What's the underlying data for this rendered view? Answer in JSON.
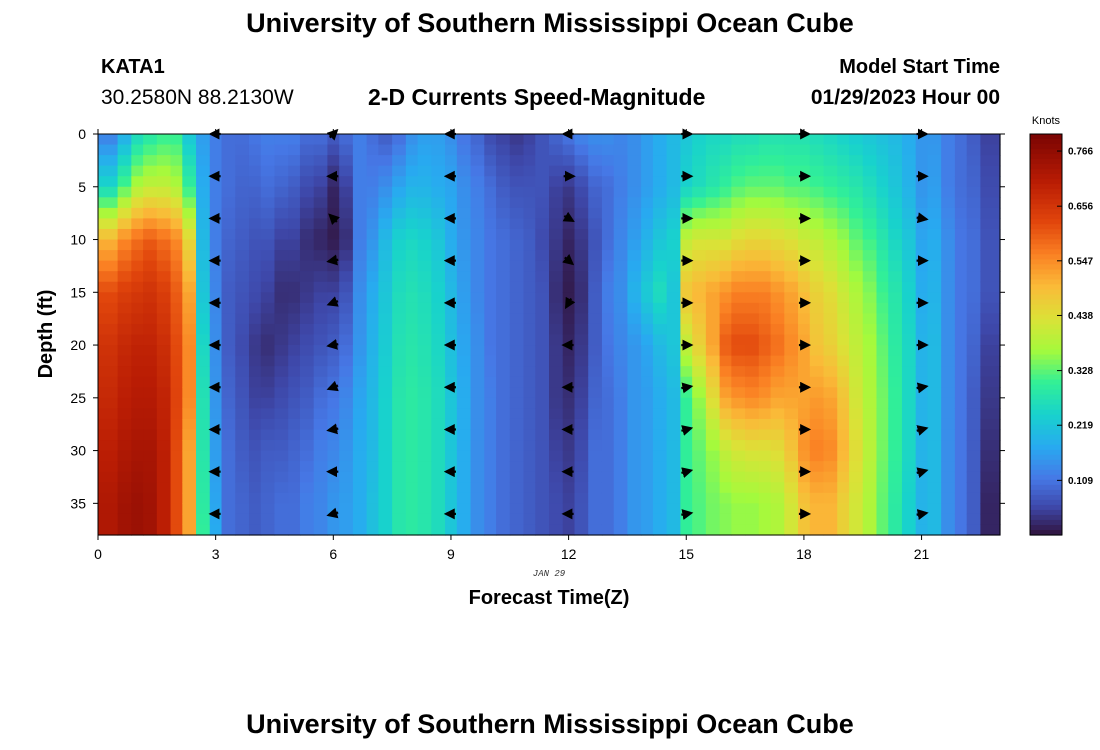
{
  "page": {
    "title": "University of Southern Mississippi Ocean Cube",
    "station": "KATA1",
    "coordinates": "30.2580N  88.2130W",
    "subtitle": "2-D Currents Speed-Magnitude",
    "model_start_label": "Model Start Time",
    "model_start_value": "01/29/2023 Hour 00",
    "footer_title": "University of Southern Mississippi Ocean Cube"
  },
  "chart_data": {
    "type": "heatmap",
    "title": "2-D Currents Speed-Magnitude",
    "xlabel": "Forecast Time(Z)",
    "ylabel": "Depth (ft)",
    "x_date_label": "JAN 29",
    "xlim": [
      0,
      23
    ],
    "ylim": [
      0,
      38
    ],
    "y_inverted": true,
    "x_ticks": [
      0,
      3,
      6,
      9,
      12,
      15,
      18,
      21
    ],
    "y_ticks": [
      0,
      5,
      10,
      15,
      20,
      25,
      30,
      35
    ],
    "colorbar": {
      "title": "Knots",
      "min": 0.0,
      "max": 0.8,
      "tick_values": [
        0.766,
        0.656,
        0.547,
        0.438,
        0.328,
        0.219,
        0.109
      ],
      "tick_labels": [
        "0.766",
        "0.656",
        "0.547",
        "0.438",
        "0.328",
        "0.219",
        "0.109"
      ]
    },
    "time_columns": [
      0.3,
      0.7,
      1.0,
      1.3,
      1.7,
      2.0,
      2.3,
      2.7,
      3.0,
      3.3,
      3.7,
      4.0,
      4.3,
      4.7,
      5.0,
      5.3,
      5.7,
      6.0,
      6.3,
      6.7,
      7.0,
      7.3,
      7.7,
      8.0,
      8.3,
      8.7,
      9.0,
      9.3,
      9.7,
      10.0,
      10.3,
      10.7,
      11.0,
      11.3,
      11.7,
      12.0,
      12.3,
      12.7,
      13.0,
      13.3,
      13.7,
      14.0,
      14.3,
      14.7,
      15.0,
      15.3,
      15.7,
      16.0,
      16.3,
      16.7,
      17.0,
      17.3,
      17.7,
      18.0,
      18.3,
      18.7,
      19.0,
      19.3,
      19.7,
      20.0,
      20.3,
      20.7,
      21.0,
      21.3,
      21.7,
      22.0,
      22.3,
      22.7
    ],
    "depth_anchors": [
      0,
      5,
      10,
      15,
      20,
      25,
      30,
      35,
      38
    ],
    "speed_knots_by_time": [
      [
        0.12,
        0.25,
        0.5,
        0.62,
        0.66,
        0.68,
        0.7,
        0.72,
        0.72
      ],
      [
        0.18,
        0.32,
        0.55,
        0.64,
        0.68,
        0.7,
        0.72,
        0.74,
        0.74
      ],
      [
        0.25,
        0.38,
        0.58,
        0.65,
        0.69,
        0.71,
        0.73,
        0.75,
        0.75
      ],
      [
        0.28,
        0.4,
        0.6,
        0.66,
        0.69,
        0.71,
        0.73,
        0.74,
        0.74
      ],
      [
        0.3,
        0.4,
        0.58,
        0.64,
        0.67,
        0.69,
        0.7,
        0.7,
        0.7
      ],
      [
        0.3,
        0.38,
        0.55,
        0.6,
        0.62,
        0.63,
        0.62,
        0.62,
        0.62
      ],
      [
        0.22,
        0.3,
        0.45,
        0.52,
        0.55,
        0.55,
        0.52,
        0.52,
        0.52
      ],
      [
        0.16,
        0.18,
        0.2,
        0.22,
        0.25,
        0.27,
        0.28,
        0.29,
        0.3
      ],
      [
        0.12,
        0.12,
        0.12,
        0.13,
        0.14,
        0.15,
        0.16,
        0.17,
        0.18
      ],
      [
        0.1,
        0.1,
        0.09,
        0.08,
        0.08,
        0.09,
        0.1,
        0.1,
        0.1
      ],
      [
        0.1,
        0.09,
        0.08,
        0.07,
        0.06,
        0.07,
        0.08,
        0.09,
        0.09
      ],
      [
        0.11,
        0.09,
        0.07,
        0.06,
        0.04,
        0.05,
        0.07,
        0.08,
        0.08
      ],
      [
        0.12,
        0.1,
        0.07,
        0.05,
        0.03,
        0.05,
        0.08,
        0.09,
        0.09
      ],
      [
        0.12,
        0.09,
        0.05,
        0.03,
        0.04,
        0.06,
        0.08,
        0.1,
        0.1
      ],
      [
        0.12,
        0.08,
        0.05,
        0.03,
        0.05,
        0.07,
        0.09,
        0.1,
        0.1
      ],
      [
        0.1,
        0.06,
        0.03,
        0.04,
        0.06,
        0.08,
        0.1,
        0.12,
        0.12
      ],
      [
        0.1,
        0.05,
        0.02,
        0.05,
        0.07,
        0.1,
        0.12,
        0.13,
        0.13
      ],
      [
        0.08,
        0.02,
        0.01,
        0.05,
        0.08,
        0.11,
        0.13,
        0.15,
        0.15
      ],
      [
        0.1,
        0.05,
        0.03,
        0.07,
        0.1,
        0.13,
        0.15,
        0.16,
        0.16
      ],
      [
        0.12,
        0.12,
        0.12,
        0.14,
        0.15,
        0.17,
        0.18,
        0.18,
        0.18
      ],
      [
        0.1,
        0.12,
        0.15,
        0.18,
        0.19,
        0.2,
        0.2,
        0.21,
        0.21
      ],
      [
        0.08,
        0.14,
        0.2,
        0.22,
        0.23,
        0.24,
        0.24,
        0.24,
        0.24
      ],
      [
        0.1,
        0.17,
        0.24,
        0.26,
        0.27,
        0.28,
        0.28,
        0.28,
        0.28
      ],
      [
        0.14,
        0.19,
        0.25,
        0.27,
        0.28,
        0.29,
        0.29,
        0.29,
        0.29
      ],
      [
        0.16,
        0.19,
        0.24,
        0.26,
        0.27,
        0.28,
        0.28,
        0.28,
        0.28
      ],
      [
        0.16,
        0.18,
        0.22,
        0.24,
        0.25,
        0.26,
        0.26,
        0.26,
        0.26
      ],
      [
        0.14,
        0.17,
        0.18,
        0.2,
        0.21,
        0.22,
        0.22,
        0.22,
        0.22
      ],
      [
        0.11,
        0.14,
        0.15,
        0.16,
        0.17,
        0.18,
        0.18,
        0.18,
        0.18
      ],
      [
        0.09,
        0.12,
        0.13,
        0.13,
        0.14,
        0.14,
        0.14,
        0.14,
        0.14
      ],
      [
        0.06,
        0.1,
        0.11,
        0.11,
        0.11,
        0.12,
        0.12,
        0.12,
        0.12
      ],
      [
        0.05,
        0.08,
        0.1,
        0.1,
        0.1,
        0.1,
        0.1,
        0.1,
        0.1
      ],
      [
        0.04,
        0.07,
        0.09,
        0.09,
        0.09,
        0.09,
        0.09,
        0.09,
        0.09
      ],
      [
        0.05,
        0.07,
        0.08,
        0.08,
        0.08,
        0.08,
        0.08,
        0.08,
        0.08
      ],
      [
        0.07,
        0.07,
        0.06,
        0.07,
        0.07,
        0.07,
        0.07,
        0.07,
        0.07
      ],
      [
        0.09,
        0.05,
        0.04,
        0.03,
        0.04,
        0.04,
        0.05,
        0.06,
        0.06
      ],
      [
        0.11,
        0.04,
        0.02,
        0.01,
        0.02,
        0.03,
        0.04,
        0.05,
        0.05
      ],
      [
        0.13,
        0.06,
        0.04,
        0.03,
        0.04,
        0.05,
        0.06,
        0.07,
        0.07
      ],
      [
        0.14,
        0.09,
        0.07,
        0.08,
        0.08,
        0.09,
        0.1,
        0.1,
        0.1
      ],
      [
        0.14,
        0.1,
        0.1,
        0.12,
        0.11,
        0.1,
        0.1,
        0.1,
        0.1
      ],
      [
        0.13,
        0.12,
        0.13,
        0.14,
        0.13,
        0.12,
        0.12,
        0.12,
        0.12
      ],
      [
        0.14,
        0.14,
        0.16,
        0.19,
        0.15,
        0.15,
        0.15,
        0.15,
        0.15
      ],
      [
        0.16,
        0.16,
        0.19,
        0.23,
        0.17,
        0.16,
        0.16,
        0.16,
        0.16
      ],
      [
        0.18,
        0.18,
        0.22,
        0.26,
        0.2,
        0.18,
        0.18,
        0.18,
        0.18
      ],
      [
        0.2,
        0.2,
        0.24,
        0.22,
        0.22,
        0.2,
        0.2,
        0.2,
        0.2
      ],
      [
        0.22,
        0.24,
        0.4,
        0.48,
        0.4,
        0.3,
        0.3,
        0.3,
        0.3
      ],
      [
        0.24,
        0.26,
        0.42,
        0.5,
        0.46,
        0.36,
        0.33,
        0.32,
        0.32
      ],
      [
        0.25,
        0.28,
        0.42,
        0.52,
        0.52,
        0.44,
        0.36,
        0.34,
        0.34
      ],
      [
        0.25,
        0.3,
        0.42,
        0.54,
        0.6,
        0.52,
        0.4,
        0.35,
        0.35
      ],
      [
        0.26,
        0.32,
        0.44,
        0.56,
        0.62,
        0.54,
        0.42,
        0.36,
        0.36
      ],
      [
        0.26,
        0.33,
        0.45,
        0.56,
        0.62,
        0.55,
        0.43,
        0.36,
        0.36
      ],
      [
        0.27,
        0.33,
        0.45,
        0.56,
        0.6,
        0.54,
        0.43,
        0.37,
        0.37
      ],
      [
        0.27,
        0.33,
        0.44,
        0.54,
        0.58,
        0.52,
        0.44,
        0.38,
        0.38
      ],
      [
        0.27,
        0.32,
        0.43,
        0.52,
        0.55,
        0.52,
        0.48,
        0.42,
        0.42
      ],
      [
        0.27,
        0.32,
        0.41,
        0.49,
        0.52,
        0.52,
        0.54,
        0.48,
        0.48
      ],
      [
        0.26,
        0.31,
        0.4,
        0.46,
        0.48,
        0.53,
        0.56,
        0.5,
        0.5
      ],
      [
        0.25,
        0.3,
        0.38,
        0.44,
        0.46,
        0.52,
        0.55,
        0.5,
        0.5
      ],
      [
        0.24,
        0.29,
        0.36,
        0.41,
        0.43,
        0.48,
        0.5,
        0.46,
        0.46
      ],
      [
        0.23,
        0.28,
        0.33,
        0.38,
        0.4,
        0.42,
        0.44,
        0.42,
        0.42
      ],
      [
        0.22,
        0.26,
        0.31,
        0.35,
        0.37,
        0.38,
        0.39,
        0.38,
        0.38
      ],
      [
        0.21,
        0.24,
        0.28,
        0.31,
        0.33,
        0.34,
        0.34,
        0.33,
        0.33
      ],
      [
        0.2,
        0.22,
        0.25,
        0.28,
        0.29,
        0.3,
        0.3,
        0.29,
        0.29
      ],
      [
        0.18,
        0.19,
        0.22,
        0.24,
        0.25,
        0.25,
        0.25,
        0.24,
        0.24
      ],
      [
        0.15,
        0.15,
        0.17,
        0.18,
        0.19,
        0.19,
        0.19,
        0.19,
        0.19
      ],
      [
        0.15,
        0.16,
        0.18,
        0.19,
        0.2,
        0.2,
        0.2,
        0.2,
        0.2
      ],
      [
        0.12,
        0.12,
        0.14,
        0.14,
        0.14,
        0.14,
        0.14,
        0.14,
        0.14
      ],
      [
        0.1,
        0.1,
        0.11,
        0.11,
        0.11,
        0.11,
        0.11,
        0.11,
        0.11
      ],
      [
        0.08,
        0.09,
        0.1,
        0.1,
        0.09,
        0.08,
        0.08,
        0.08,
        0.08
      ],
      [
        0.05,
        0.06,
        0.07,
        0.07,
        0.05,
        0.04,
        0.03,
        0.02,
        0.02
      ]
    ],
    "vector_times": [
      3,
      6,
      9,
      12,
      15,
      18,
      21
    ],
    "vector_depths": [
      0,
      4,
      8,
      12,
      16,
      20,
      24,
      28,
      32,
      36
    ],
    "vector_direction_deg": [
      [
        180,
        180,
        180,
        180,
        180,
        180,
        180,
        180,
        180,
        180
      ],
      [
        45,
        180,
        135,
        190,
        200,
        190,
        200,
        190,
        180,
        195
      ],
      [
        180,
        180,
        180,
        180,
        180,
        180,
        180,
        180,
        180,
        180
      ],
      [
        180,
        0,
        330,
        320,
        240,
        180,
        180,
        180,
        180,
        180
      ],
      [
        0,
        0,
        0,
        0,
        0,
        0,
        10,
        15,
        15,
        10
      ],
      [
        0,
        0,
        0,
        0,
        0,
        0,
        0,
        0,
        0,
        0
      ],
      [
        0,
        0,
        350,
        0,
        0,
        0,
        10,
        15,
        15,
        10
      ]
    ]
  }
}
